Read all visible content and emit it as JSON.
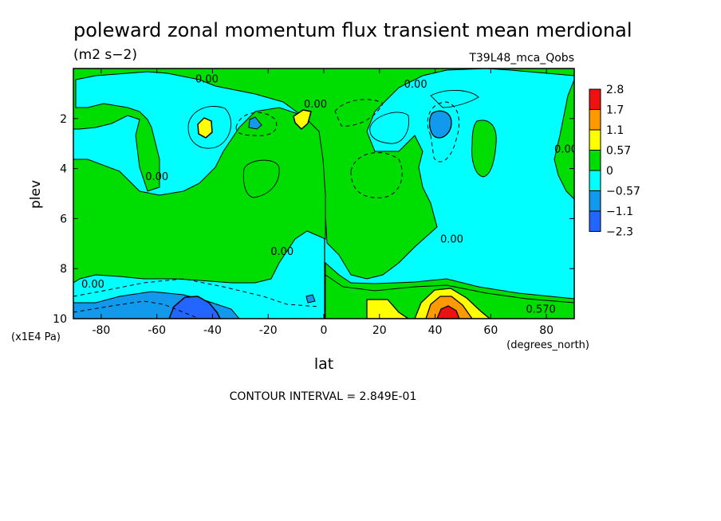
{
  "chart_data": {
    "type": "heatmap",
    "title": "poleward zonal momentum flux transient mean merdional",
    "units": "(m2 s−2)",
    "run_label": "T39L48_mca_Qobs",
    "xlabel": "lat",
    "x_units": "(degrees_north)",
    "ylabel": "plev",
    "y_units": "(x1E4 Pa)",
    "xlim": [
      -90,
      90
    ],
    "ylim": [
      0,
      10
    ],
    "y_inverted": true,
    "x_ticks": [
      "-80",
      "-60",
      "-40",
      "-20",
      "0",
      "20",
      "40",
      "60",
      "80"
    ],
    "x_tick_values": [
      -80,
      -60,
      -40,
      -20,
      0,
      20,
      40,
      60,
      80
    ],
    "y_ticks": [
      "2",
      "4",
      "6",
      "8",
      "10"
    ],
    "y_tick_values": [
      2,
      4,
      6,
      8,
      10
    ],
    "contour_interval_text": "CONTOUR INTERVAL = 2.849E-01",
    "colorbar": {
      "labels": [
        "2.8",
        "1.7",
        "1.1",
        "0.57",
        "0",
        "−0.57",
        "−1.1",
        "−2.3"
      ],
      "colors": [
        "#ee1111",
        "#ff9900",
        "#ffff00",
        "#00dd00",
        "#00ffff",
        "#1199ee",
        "#2266ff"
      ]
    },
    "contour_labels": [
      {
        "text": "0.00",
        "lat": -42,
        "plev": 0.4
      },
      {
        "text": "0.00",
        "lat": -3,
        "plev": 1.4
      },
      {
        "text": "0.00",
        "lat": 33,
        "plev": 0.6
      },
      {
        "text": "0.00",
        "lat": -60,
        "plev": 4.3
      },
      {
        "text": "0.00",
        "lat": 87,
        "plev": 3.2
      },
      {
        "text": "0.00",
        "lat": 46,
        "plev": 6.8
      },
      {
        "text": "0.00",
        "lat": -15,
        "plev": 7.3
      },
      {
        "text": "0.00",
        "lat": -83,
        "plev": 8.6
      },
      {
        "text": "0.570",
        "lat": 78,
        "plev": 9.6
      }
    ]
  }
}
